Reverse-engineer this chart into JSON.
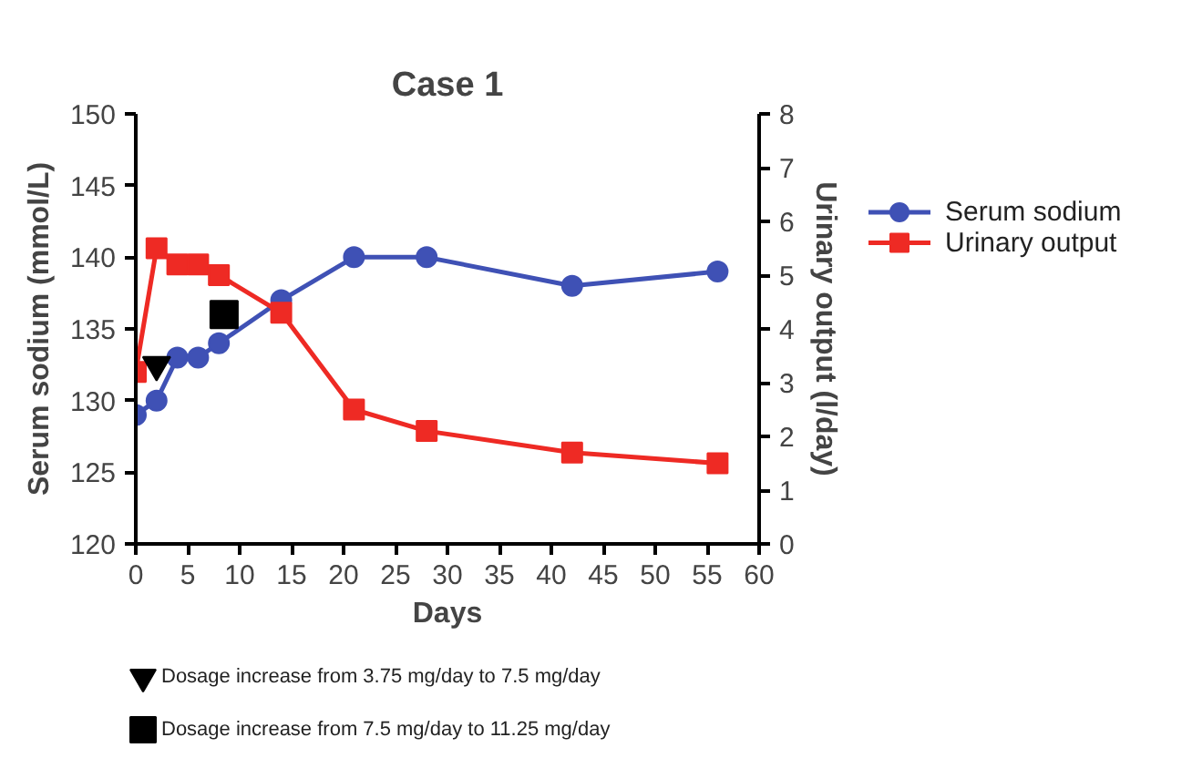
{
  "chart_data": {
    "type": "line",
    "title": "Case 1",
    "xlabel": "Days",
    "ylabel": "Serum sodium (mmol/L)",
    "y2label": "Urinary output (l/day)",
    "x": [
      0,
      2,
      4,
      6,
      8,
      14,
      21,
      28,
      42,
      56
    ],
    "series": [
      {
        "name": "Serum sodium",
        "color": "#3f51b5",
        "marker": "circle",
        "values": [
          129,
          130,
          133,
          133,
          134,
          137,
          140,
          140,
          138,
          139
        ]
      },
      {
        "name": "Urinary output",
        "color": "#ee2a24",
        "marker": "square",
        "axis": "y2",
        "values": [
          3.2,
          5.5,
          5.2,
          5.2,
          5.0,
          4.3,
          2.5,
          2.1,
          1.7,
          1.5
        ]
      },
      {
        "name": "Dosage increase from 3.75 mg/day to 7.5 mg/day",
        "type": "scatter",
        "color": "#000000",
        "marker": "triangle",
        "x": [
          2
        ],
        "values": [
          132.5
        ]
      },
      {
        "name": "Dosage increase from 7.5 mg/day to 11.25 mg/day",
        "type": "scatter",
        "color": "#000000",
        "marker": "square",
        "x": [
          8.5
        ],
        "values": [
          136
        ]
      }
    ],
    "xlim": [
      0,
      60
    ],
    "xticks": [
      0,
      5,
      10,
      15,
      20,
      25,
      30,
      35,
      40,
      45,
      50,
      55,
      60
    ],
    "ylim": [
      120,
      150
    ],
    "yticks": [
      120,
      125,
      130,
      135,
      140,
      145,
      150
    ],
    "y2lim": [
      0,
      8
    ],
    "y2ticks": [
      0,
      1,
      2,
      3,
      4,
      5,
      6,
      7,
      8
    ],
    "grid": false,
    "legend": "right",
    "line_style": "solid"
  }
}
